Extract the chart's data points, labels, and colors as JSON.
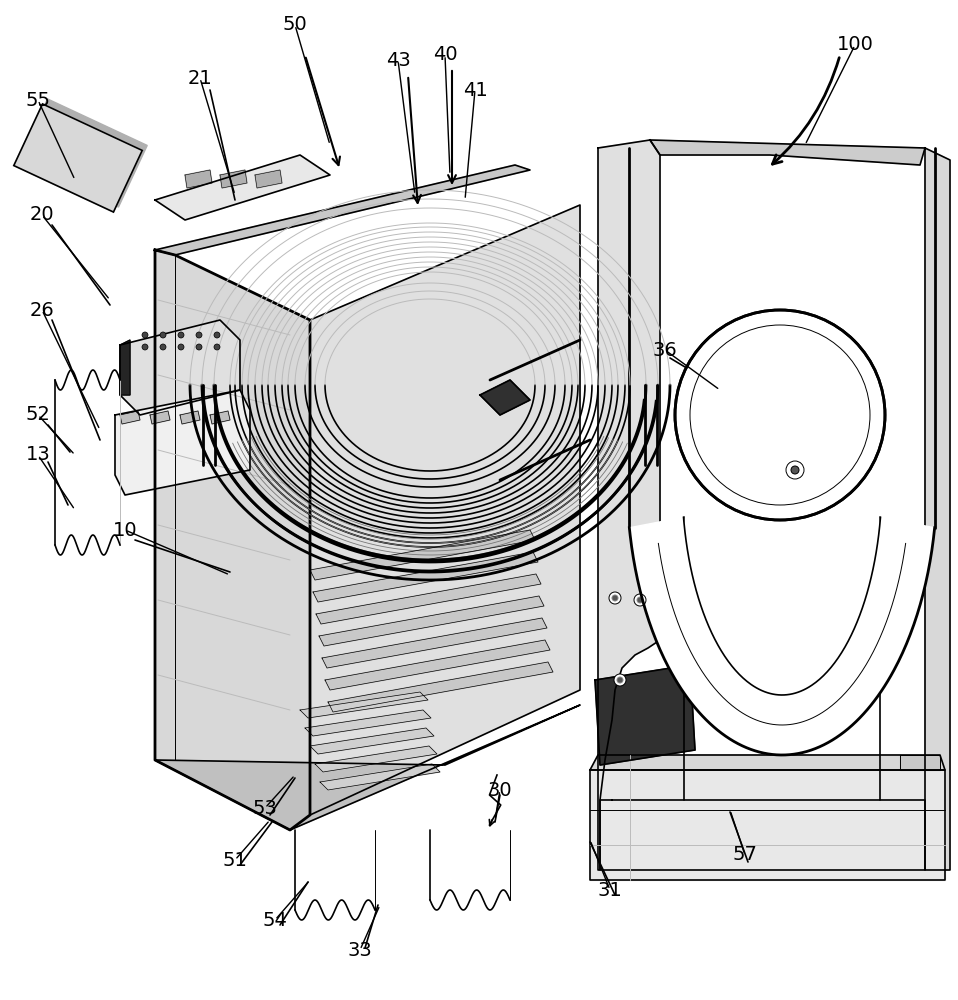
{
  "bg_color": "#ffffff",
  "lc": "#000000",
  "lc_gray": "#888888",
  "lc_lgray": "#bbbbbb",
  "lw": 1.2,
  "lw_thick": 2.0,
  "lw_thin": 0.7,
  "fs": 14,
  "labels": [
    [
      "100",
      855,
      45,
      805,
      145,
      true
    ],
    [
      "50",
      295,
      25,
      330,
      145,
      false
    ],
    [
      "43",
      398,
      60,
      415,
      195,
      false
    ],
    [
      "40",
      445,
      55,
      450,
      175,
      false
    ],
    [
      "41",
      475,
      90,
      465,
      200,
      false
    ],
    [
      "21",
      200,
      78,
      235,
      195,
      false
    ],
    [
      "55",
      38,
      100,
      75,
      180,
      false
    ],
    [
      "20",
      42,
      215,
      110,
      300,
      false
    ],
    [
      "26",
      42,
      310,
      100,
      430,
      false
    ],
    [
      "52",
      38,
      415,
      75,
      455,
      false
    ],
    [
      "13",
      38,
      455,
      75,
      510,
      false
    ],
    [
      "10",
      125,
      530,
      230,
      575,
      false
    ],
    [
      "36",
      665,
      350,
      720,
      390,
      false
    ],
    [
      "30",
      500,
      790,
      495,
      820,
      false
    ],
    [
      "33",
      360,
      950,
      380,
      905,
      false
    ],
    [
      "31",
      610,
      890,
      590,
      840,
      false
    ],
    [
      "57",
      745,
      855,
      730,
      810,
      false
    ],
    [
      "51",
      235,
      860,
      270,
      820,
      false
    ],
    [
      "53",
      265,
      808,
      295,
      775,
      false
    ],
    [
      "54",
      275,
      920,
      310,
      880,
      false
    ]
  ]
}
